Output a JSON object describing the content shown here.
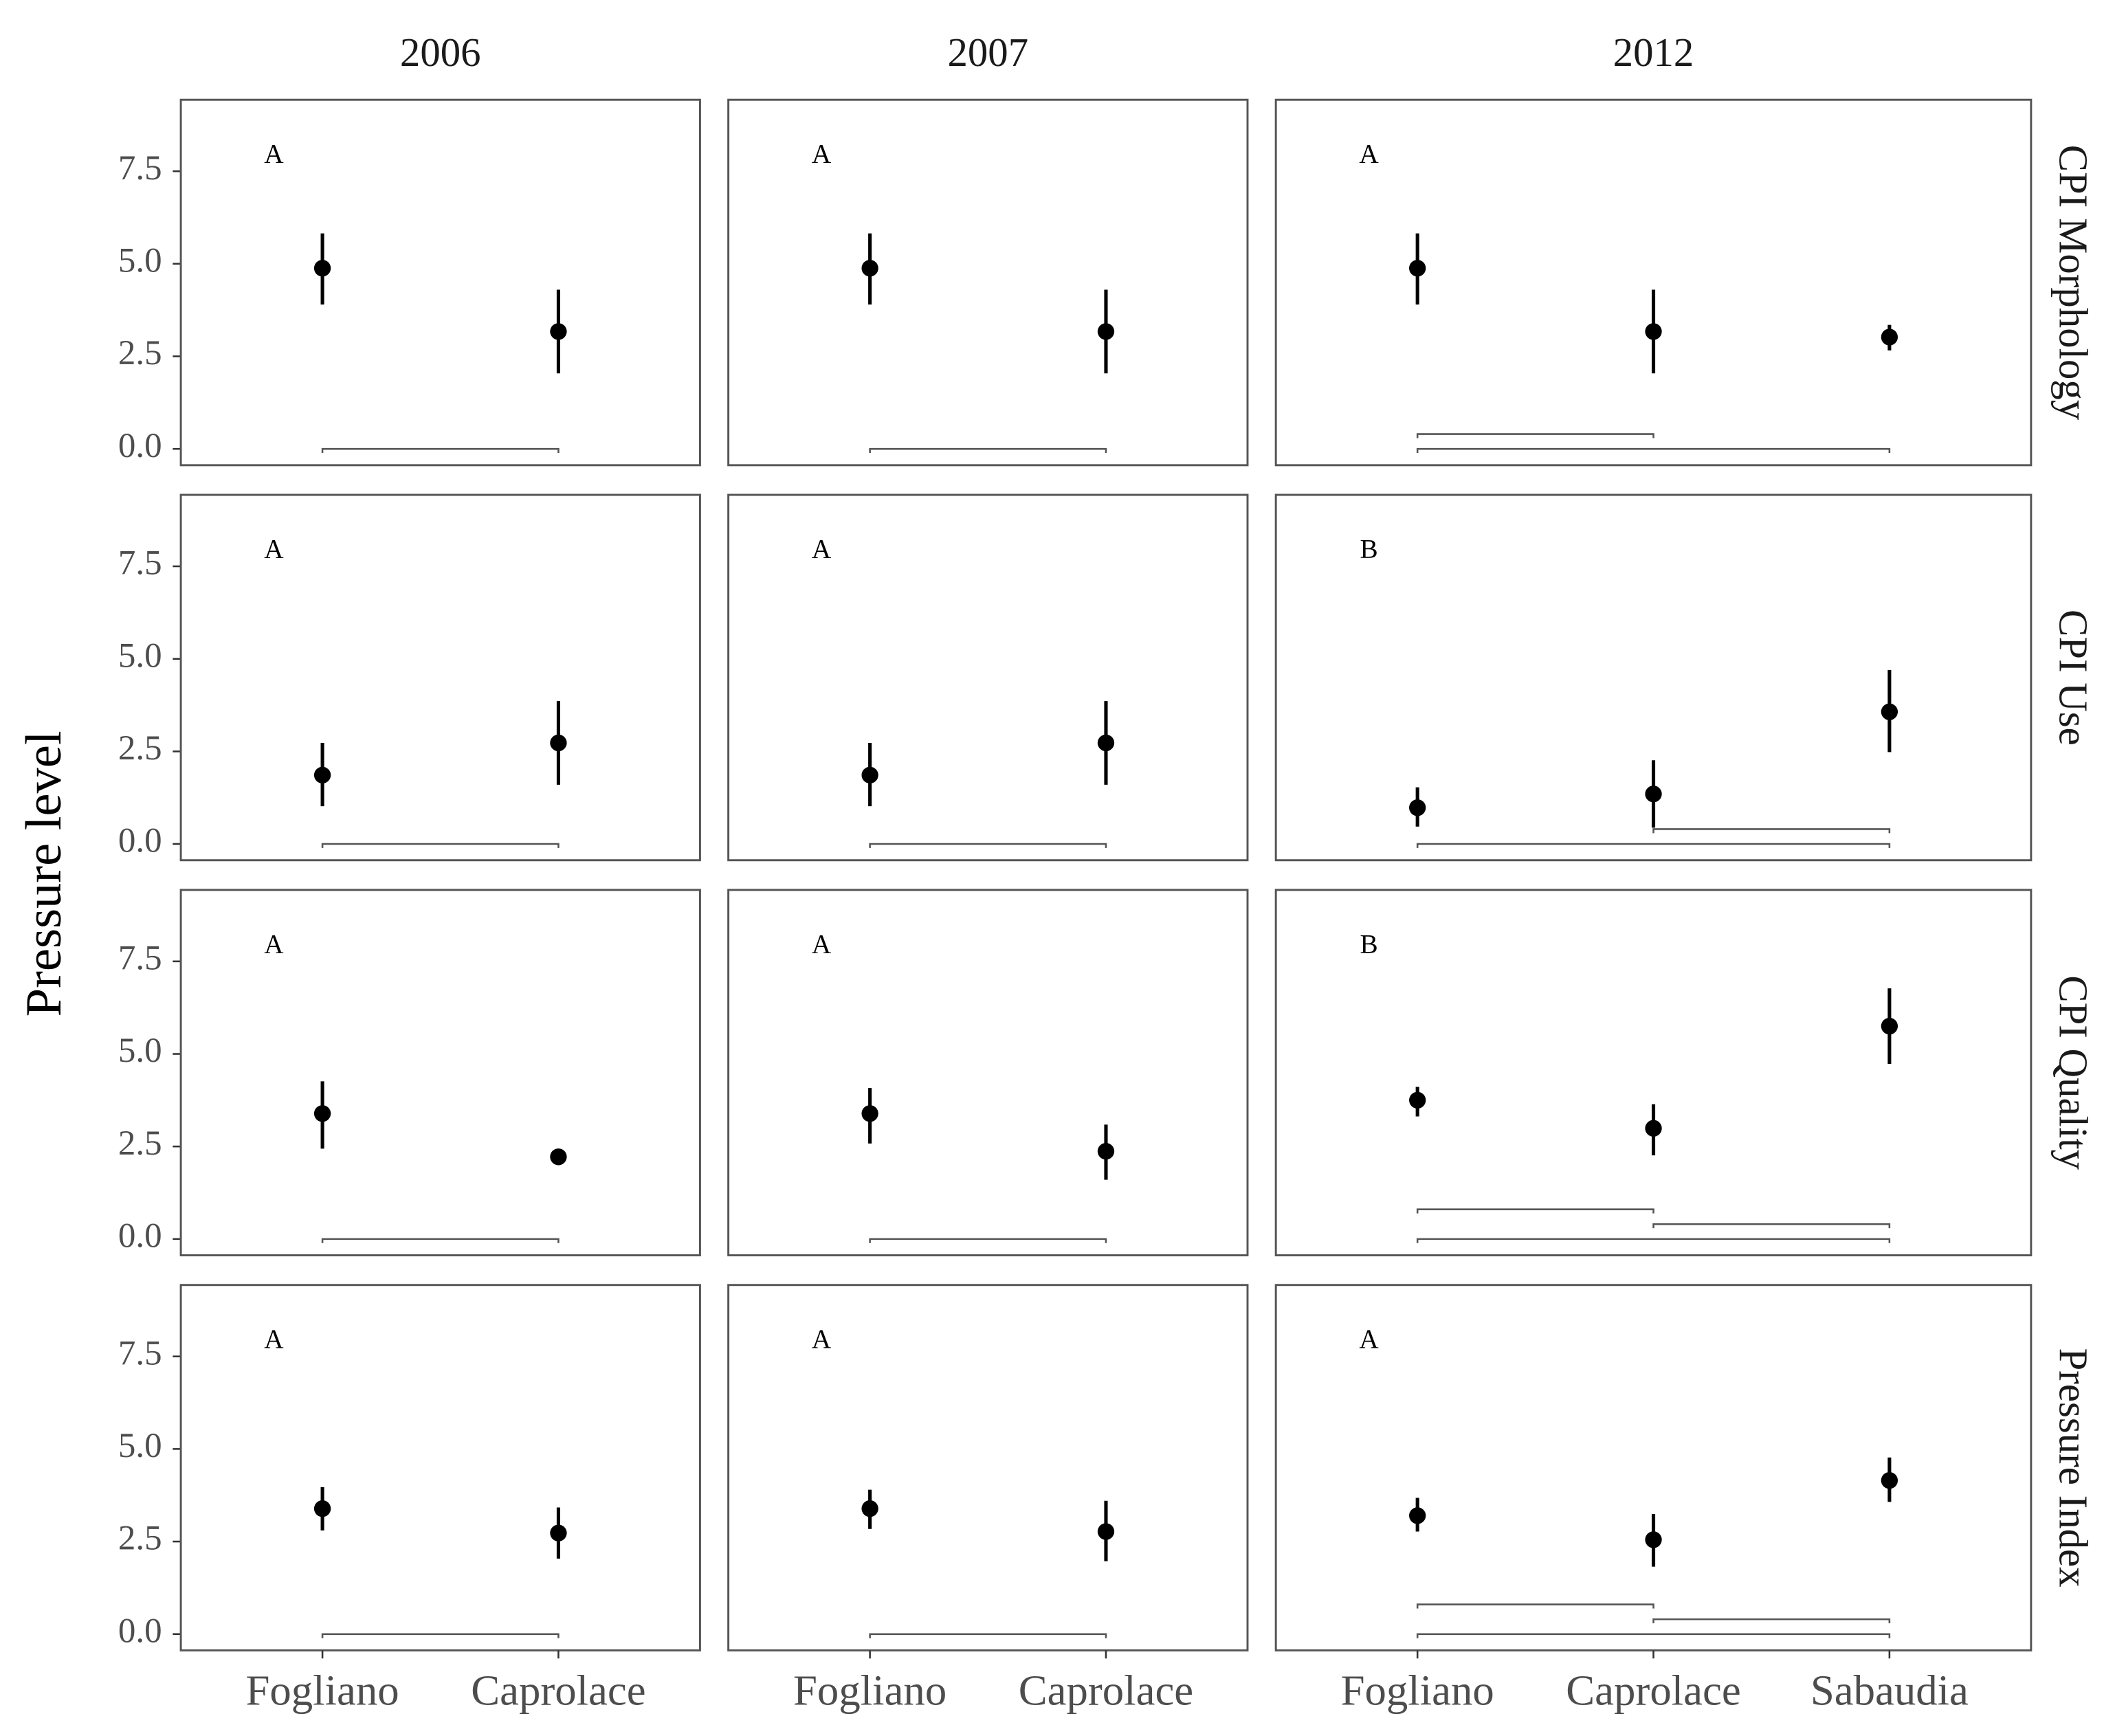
{
  "chart_data": {
    "type": "pointrange",
    "y_label": "Pressure level",
    "ylim": [
      -0.44,
      9.43
    ],
    "yticks": [
      {
        "value": 0,
        "label": "0.0"
      },
      2.5,
      {
        "value": 5,
        "label": "5.0"
      },
      7.5
    ],
    "color": "#000000",
    "columns": [
      {
        "title": "2006",
        "categories": [
          "Fogliano",
          "Caprolace"
        ]
      },
      {
        "title": "2007",
        "categories": [
          "Fogliano",
          "Caprolace"
        ]
      },
      {
        "title": "2012",
        "categories": [
          "Fogliano",
          "Caprolace",
          "Sabaudia"
        ]
      }
    ],
    "rows": [
      {
        "title": "CPI Morphology",
        "panels": [
          {
            "annotation": "A",
            "values": [
              4.88,
              3.17
            ],
            "lower": [
              3.9,
              2.04
            ],
            "upper": [
              5.82,
              4.3
            ],
            "comparisons": [
              [
                "Fogliano",
                "Caprolace"
              ]
            ]
          },
          {
            "annotation": "A",
            "values": [
              4.88,
              3.17
            ],
            "lower": [
              3.9,
              2.04
            ],
            "upper": [
              5.82,
              4.3
            ],
            "comparisons": [
              [
                "Fogliano",
                "Caprolace"
              ]
            ]
          },
          {
            "annotation": "A",
            "values": [
              4.88,
              3.17,
              3.02
            ],
            "lower": [
              3.9,
              2.04,
              2.66
            ],
            "upper": [
              5.82,
              4.3,
              3.35
            ],
            "comparisons": [
              [
                "Fogliano",
                "Sabaudia"
              ],
              [
                "Fogliano",
                "Caprolace"
              ]
            ]
          }
        ]
      },
      {
        "title": "CPI Use",
        "panels": [
          {
            "annotation": "A",
            "values": [
              1.86,
              2.73
            ],
            "lower": [
              1.02,
              1.6
            ],
            "upper": [
              2.73,
              3.86
            ],
            "comparisons": [
              [
                "Fogliano",
                "Caprolace"
              ]
            ]
          },
          {
            "annotation": "A",
            "values": [
              1.86,
              2.73
            ],
            "lower": [
              1.02,
              1.6
            ],
            "upper": [
              2.73,
              3.86
            ],
            "comparisons": [
              [
                "Fogliano",
                "Caprolace"
              ]
            ]
          },
          {
            "annotation": "B",
            "values": [
              0.98,
              1.35,
              3.57
            ],
            "lower": [
              0.47,
              0.44,
              2.48
            ],
            "upper": [
              1.53,
              2.26,
              4.7
            ],
            "comparisons": [
              [
                "Fogliano",
                "Sabaudia"
              ],
              [
                "Caprolace",
                "Sabaudia"
              ]
            ]
          }
        ]
      },
      {
        "title": "CPI Quality",
        "panels": [
          {
            "annotation": "A",
            "values": [
              3.39,
              2.22
            ],
            "lower": [
              2.44,
              2.15
            ],
            "upper": [
              4.26,
              2.3
            ],
            "comparisons": [
              [
                "Fogliano",
                "Caprolace"
              ]
            ]
          },
          {
            "annotation": "A",
            "values": [
              3.39,
              2.37
            ],
            "lower": [
              2.58,
              1.6
            ],
            "upper": [
              4.08,
              3.09
            ],
            "comparisons": [
              [
                "Fogliano",
                "Caprolace"
              ]
            ]
          },
          {
            "annotation": "B",
            "values": [
              3.75,
              2.99,
              5.75
            ],
            "lower": [
              3.31,
              2.26,
              4.73
            ],
            "upper": [
              4.11,
              3.64,
              6.77
            ],
            "comparisons": [
              [
                "Fogliano",
                "Sabaudia"
              ],
              [
                "Caprolace",
                "Sabaudia"
              ],
              [
                "Fogliano",
                "Caprolace"
              ]
            ]
          }
        ]
      },
      {
        "title": "Pressure Index",
        "panels": [
          {
            "annotation": "A",
            "values": [
              3.39,
              2.73
            ],
            "lower": [
              2.8,
              2.04
            ],
            "upper": [
              3.97,
              3.42
            ],
            "comparisons": [
              [
                "Fogliano",
                "Caprolace"
              ]
            ]
          },
          {
            "annotation": "A",
            "values": [
              3.39,
              2.77
            ],
            "lower": [
              2.84,
              1.97
            ],
            "upper": [
              3.9,
              3.6
            ],
            "comparisons": [
              [
                "Fogliano",
                "Caprolace"
              ]
            ]
          },
          {
            "annotation": "A",
            "values": [
              3.2,
              2.55,
              4.15
            ],
            "lower": [
              2.77,
              1.82,
              3.57
            ],
            "upper": [
              3.68,
              3.24,
              4.77
            ],
            "comparisons": [
              [
                "Fogliano",
                "Sabaudia"
              ],
              [
                "Caprolace",
                "Sabaudia"
              ],
              [
                "Fogliano",
                "Caprolace"
              ]
            ]
          }
        ]
      }
    ]
  }
}
